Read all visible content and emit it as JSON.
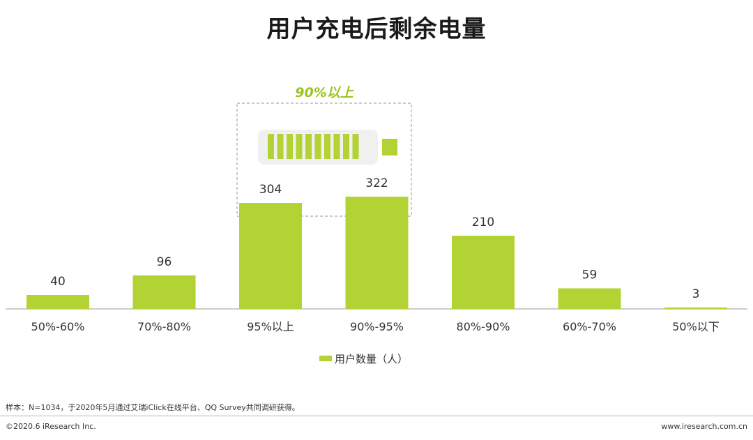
{
  "chart_data": {
    "type": "bar",
    "title": "用户充电后剩余电量",
    "categories": [
      "50%-60%",
      "70%-80%",
      "95%以上",
      "90%-95%",
      "80%-90%",
      "60%-70%",
      "50%以下"
    ],
    "series": [
      {
        "name": "用户数量（人）",
        "values": [
          40,
          96,
          304,
          322,
          210,
          59,
          3
        ]
      }
    ],
    "data_labels": [
      "40",
      "96",
      "304",
      "322",
      "210",
      "59",
      "3"
    ],
    "legend": "bottom",
    "grid": false,
    "annotation": "90%以上",
    "colors": {
      "bar": "#b3d233",
      "annotation_text": "#9cc31f",
      "battery_bg": "#f0f0f0"
    }
  },
  "footer": {
    "note": "样本：N=1034，于2020年5月通过艾瑞iClick在线平台、QQ Survey共同调研获得。",
    "copyright": "©2020.6 iResearch Inc.",
    "website": "www.iresearch.com.cn"
  }
}
